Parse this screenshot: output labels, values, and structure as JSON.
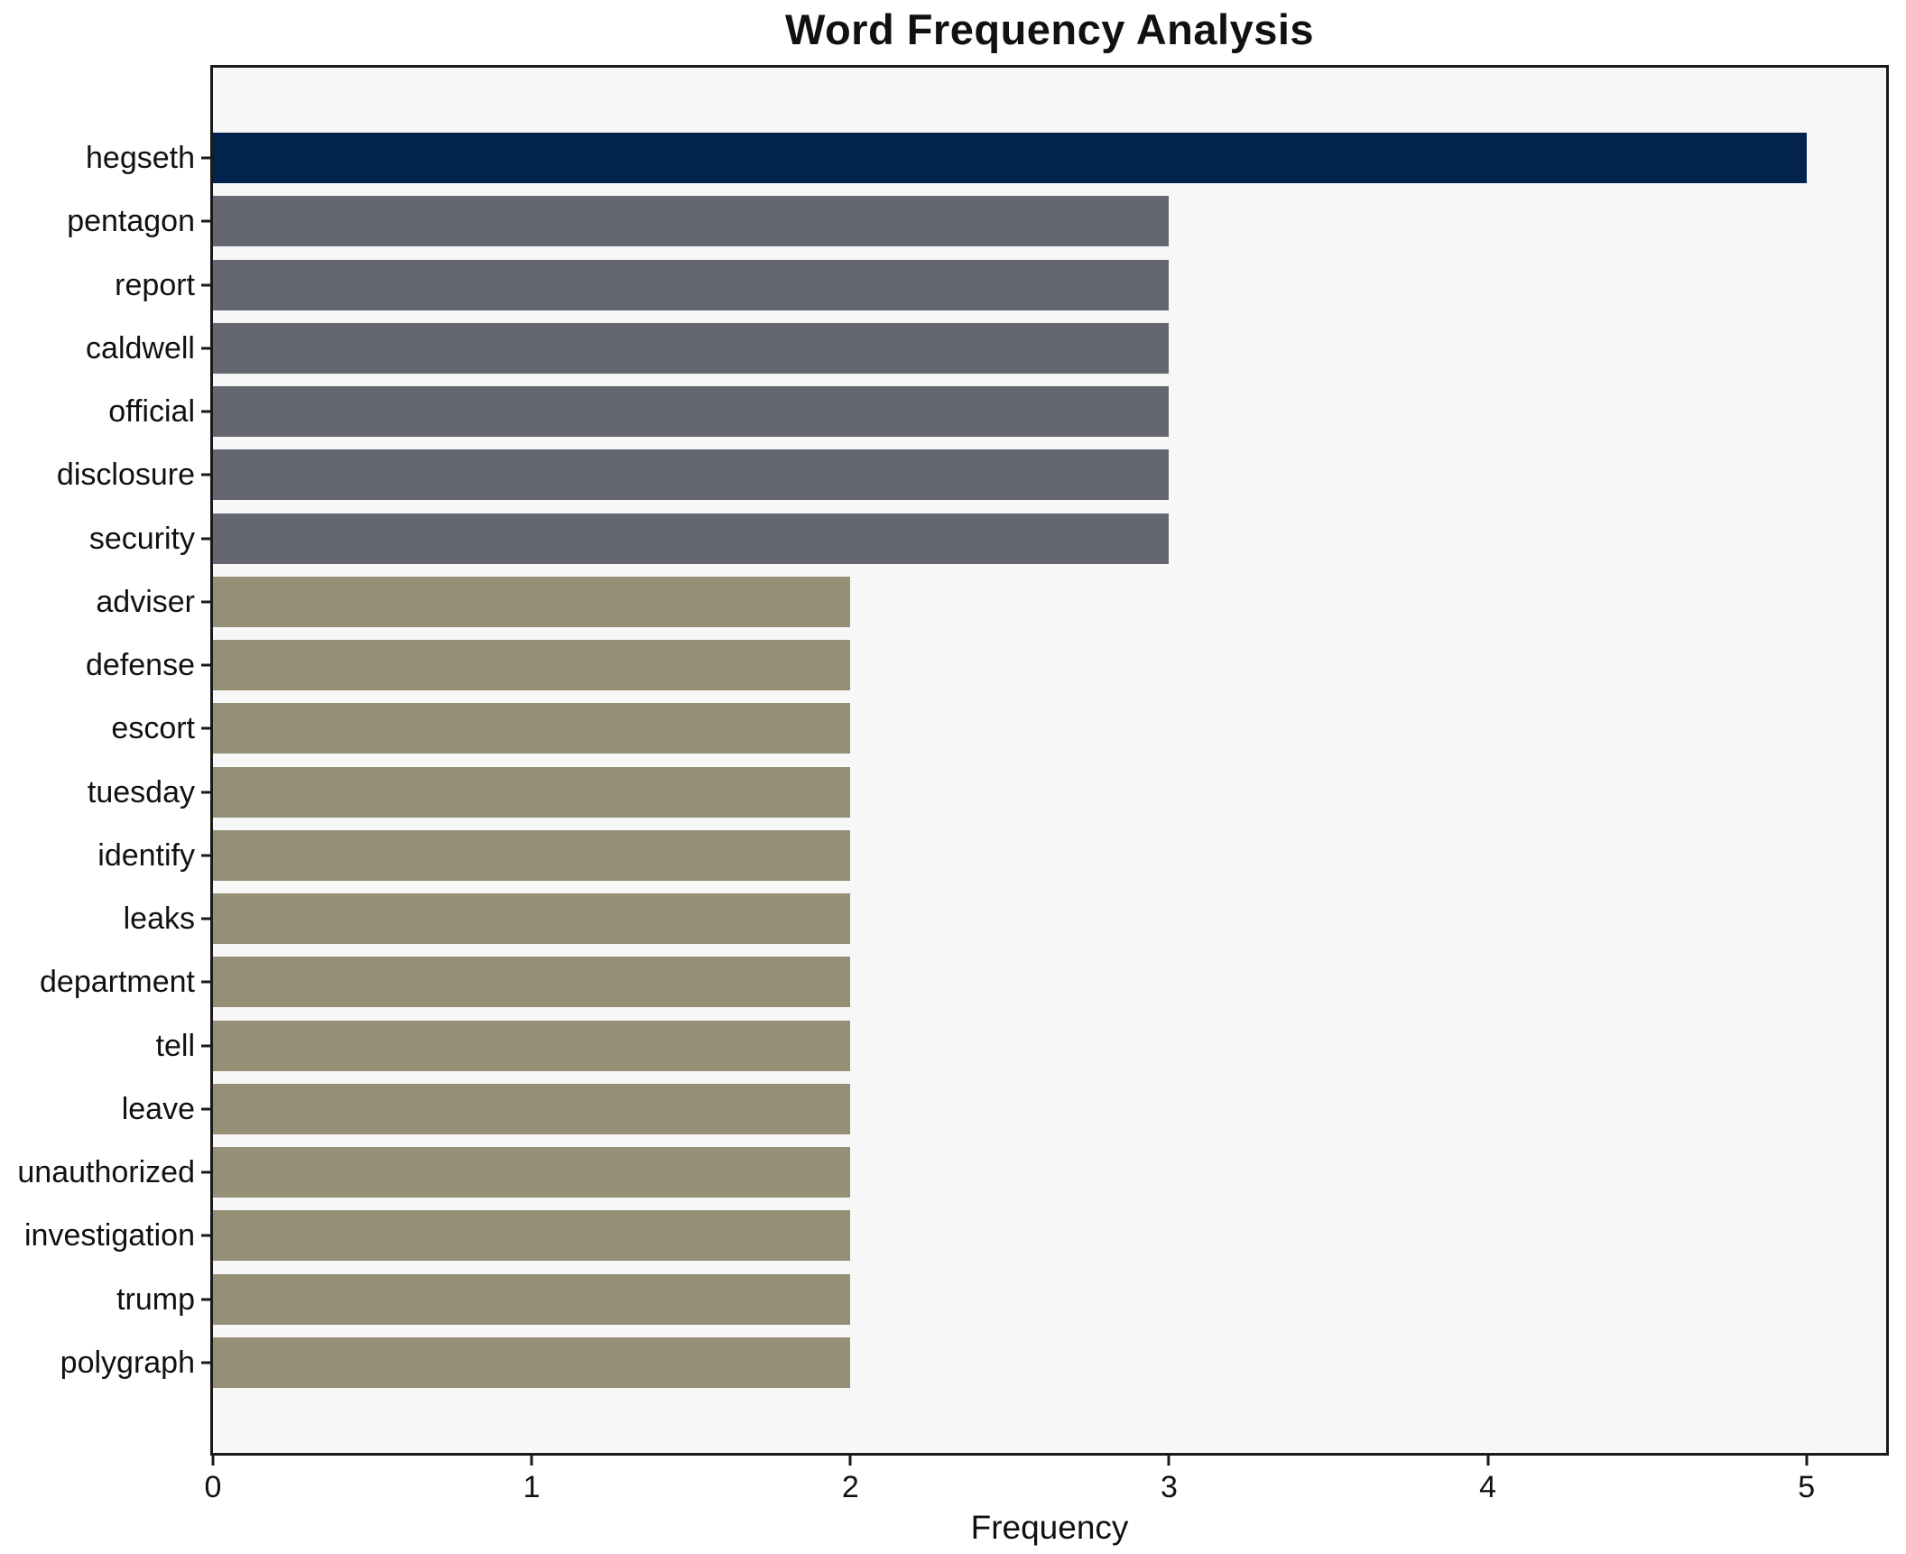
{
  "chart_data": {
    "type": "bar",
    "orientation": "horizontal",
    "title": "Word Frequency Analysis",
    "xlabel": "Frequency",
    "ylabel": "",
    "categories": [
      "hegseth",
      "pentagon",
      "report",
      "caldwell",
      "official",
      "disclosure",
      "security",
      "adviser",
      "defense",
      "escort",
      "tuesday",
      "identify",
      "leaks",
      "department",
      "tell",
      "leave",
      "unauthorized",
      "investigation",
      "trump",
      "polygraph"
    ],
    "values": [
      5,
      3,
      3,
      3,
      3,
      3,
      3,
      2,
      2,
      2,
      2,
      2,
      2,
      2,
      2,
      2,
      2,
      2,
      2,
      2
    ],
    "bar_colors": [
      "#02234d",
      "#64676f",
      "#64676f",
      "#64676f",
      "#64676f",
      "#64676f",
      "#64676f",
      "#948f75",
      "#948f75",
      "#948f75",
      "#948f75",
      "#948f75",
      "#948f75",
      "#948f75",
      "#948f75",
      "#948f75",
      "#948f75",
      "#948f75",
      "#948f75",
      "#948f75"
    ],
    "palette": {
      "freq5": "#02234d",
      "freq3": "#64676f",
      "freq2": "#948f75"
    },
    "xlim": [
      0,
      5.25
    ],
    "x_ticks": [
      0,
      1,
      2,
      3,
      4,
      5
    ],
    "grid": false,
    "legend": "none",
    "plot_background": "#f7f7f8",
    "axis_color": "#1a1a1a"
  }
}
